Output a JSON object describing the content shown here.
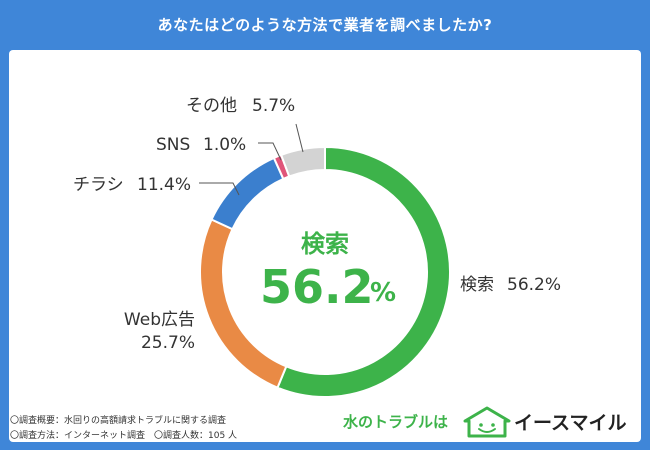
{
  "title": "あなたはどのような方法で業者を調べましたか?",
  "chart_data": {
    "type": "donut",
    "categories": [
      "検索",
      "Web広告",
      "チラシ",
      "SNS",
      "その他"
    ],
    "values": [
      56.2,
      25.7,
      11.4,
      1.0,
      5.7
    ],
    "colors": [
      "#3db34a",
      "#e98a45",
      "#3b7fce",
      "#e0557a",
      "#d3d3d3"
    ],
    "labels": [
      {
        "name": "検索",
        "value": "56.2%"
      },
      {
        "name": "Web広告",
        "value": "25.7%"
      },
      {
        "name": "チラシ",
        "value": "11.4%"
      },
      {
        "name": "SNS",
        "value": "1.0%"
      },
      {
        "name": "その他",
        "value": "5.7%"
      }
    ],
    "center": {
      "name": "検索",
      "number": "56.2",
      "unit": "%"
    }
  },
  "footnotes": [
    "〇調査概要：水回りの高額請求トラブルに関する調査",
    "〇調査方法：インターネット調査　〇調査人数：105 人"
  ],
  "brand": {
    "tagline": "水のトラブルは",
    "name": "イースマイル"
  }
}
